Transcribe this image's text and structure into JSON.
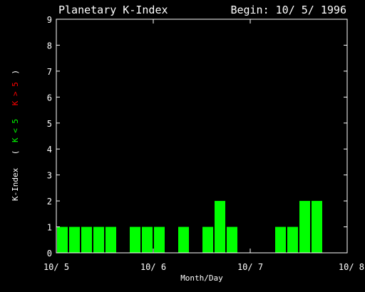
{
  "chart_data": {
    "type": "bar",
    "title": "Planetary K-Index",
    "subtitle": "Begin: 10/ 5/ 1996",
    "xlabel": "Month/Day",
    "ylabel": {
      "main": "K-Index",
      "legend_low": "K < 5",
      "legend_high": "K > 5"
    },
    "ylim": [
      0,
      9
    ],
    "yticks": [
      "0",
      "1",
      "2",
      "3",
      "4",
      "5",
      "6",
      "7",
      "8",
      "9"
    ],
    "xlim": [
      0,
      3
    ],
    "xticks": [
      {
        "value": 0,
        "label": "10/ 5"
      },
      {
        "value": 1,
        "label": "10/ 6"
      },
      {
        "value": 2,
        "label": "10/ 7"
      },
      {
        "value": 3,
        "label": "10/ 8"
      }
    ],
    "interval_days": 0.125,
    "values": [
      1,
      1,
      1,
      1,
      1,
      0,
      1,
      1,
      1,
      0,
      1,
      0,
      1,
      2,
      1,
      0,
      0,
      0,
      1,
      1,
      2,
      2,
      0,
      0
    ],
    "colors": {
      "low": "#00ff00",
      "high": "#ff0000",
      "axis": "#ffffff",
      "background": "#000000"
    }
  }
}
